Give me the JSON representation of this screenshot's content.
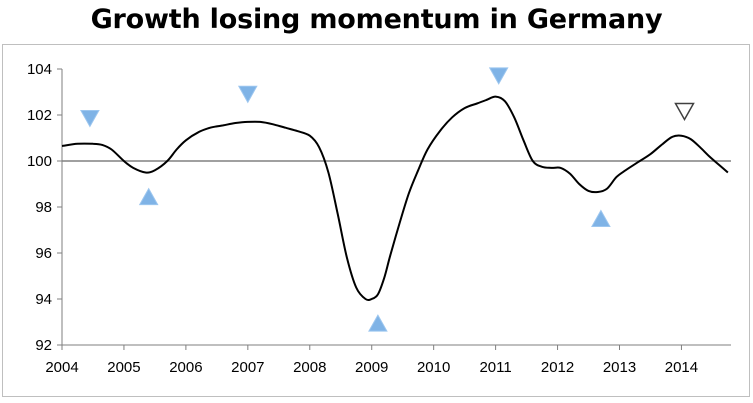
{
  "chart_data": {
    "type": "line",
    "title": "Growth losing momentum in Germany",
    "xlabel": "",
    "ylabel": "",
    "xlim": [
      2004,
      2014.8
    ],
    "ylim": [
      92,
      104
    ],
    "x_ticks": [
      "2004",
      "2005",
      "2006",
      "2007",
      "2008",
      "2009",
      "2010",
      "2011",
      "2012",
      "2013",
      "2014"
    ],
    "y_ticks": [
      "92",
      "94",
      "96",
      "98",
      "100",
      "102",
      "104"
    ],
    "reference_line": 100,
    "grid": false,
    "legend": "none",
    "line_color": "#000000",
    "series": [
      {
        "x": [
          2004.0,
          2004.25,
          2004.5,
          2004.65,
          2004.8,
          2005.0,
          2005.15,
          2005.35,
          2005.5,
          2005.7,
          2005.85,
          2006.0,
          2006.2,
          2006.4,
          2006.6,
          2006.8,
          2007.0,
          2007.2,
          2007.4,
          2007.6,
          2007.8,
          2008.0,
          2008.15,
          2008.3,
          2008.45,
          2008.6,
          2008.75,
          2008.9,
          2009.0,
          2009.1,
          2009.2,
          2009.3,
          2009.45,
          2009.6,
          2009.75,
          2009.9,
          2010.1,
          2010.3,
          2010.5,
          2010.7,
          2010.85,
          2011.0,
          2011.15,
          2011.3,
          2011.45,
          2011.6,
          2011.75,
          2011.9,
          2012.05,
          2012.2,
          2012.35,
          2012.5,
          2012.65,
          2012.8,
          2012.95,
          2013.1,
          2013.3,
          2013.5,
          2013.7,
          2013.85,
          2014.0,
          2014.15,
          2014.3,
          2014.45,
          2014.6,
          2014.75
        ],
        "values": [
          100.65,
          100.75,
          100.75,
          100.7,
          100.5,
          100.0,
          99.7,
          99.5,
          99.6,
          100.0,
          100.5,
          100.9,
          101.25,
          101.45,
          101.55,
          101.65,
          101.7,
          101.7,
          101.6,
          101.45,
          101.3,
          101.1,
          100.6,
          99.5,
          97.7,
          95.8,
          94.5,
          94.0,
          94.0,
          94.2,
          94.9,
          95.9,
          97.3,
          98.6,
          99.6,
          100.5,
          101.3,
          101.9,
          102.3,
          102.5,
          102.65,
          102.8,
          102.6,
          101.9,
          100.9,
          100.0,
          99.75,
          99.7,
          99.7,
          99.45,
          99.0,
          98.7,
          98.65,
          98.8,
          99.3,
          99.6,
          99.95,
          100.3,
          100.75,
          101.05,
          101.1,
          100.95,
          100.6,
          100.2,
          99.85,
          99.5
        ]
      }
    ],
    "markers": [
      {
        "x": 2004.45,
        "y": 101.85,
        "kind": "peak",
        "style": "filled",
        "color": "#7fb3e6"
      },
      {
        "x": 2005.4,
        "y": 98.45,
        "kind": "trough",
        "style": "filled",
        "color": "#7fb3e6"
      },
      {
        "x": 2007.0,
        "y": 102.9,
        "kind": "peak",
        "style": "filled",
        "color": "#7fb3e6"
      },
      {
        "x": 2009.1,
        "y": 92.95,
        "kind": "trough",
        "style": "filled",
        "color": "#7fb3e6"
      },
      {
        "x": 2011.05,
        "y": 103.7,
        "kind": "peak",
        "style": "filled",
        "color": "#7fb3e6"
      },
      {
        "x": 2012.7,
        "y": 97.5,
        "kind": "trough",
        "style": "filled",
        "color": "#7fb3e6"
      },
      {
        "x": 2014.05,
        "y": 102.15,
        "kind": "peak",
        "style": "outline",
        "color": "#ffffff"
      }
    ]
  }
}
